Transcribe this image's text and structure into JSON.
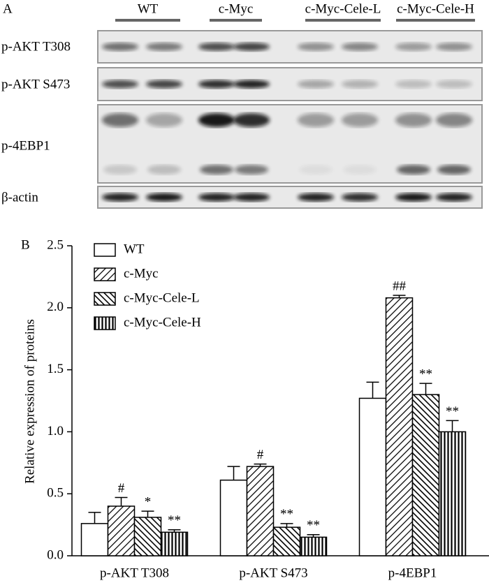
{
  "blot": {
    "panel_label": "A",
    "groups": [
      "WT",
      "c-Myc",
      "c-Myc-Cele-L",
      "c-Myc-Cele-H"
    ],
    "rows": [
      "p-AKT T308",
      "p-AKT S473",
      "p-4EBP1",
      "β-actin"
    ]
  },
  "chart_data": {
    "type": "bar",
    "panel_label": "B",
    "y_label": "Relative expression of proteins",
    "categories": [
      "p-AKT T308",
      "p-AKT S473",
      "p-4EBP1"
    ],
    "series": [
      {
        "name": "WT",
        "color": "#000000",
        "pattern": "none",
        "values": [
          0.26,
          0.61,
          1.27
        ],
        "errors": [
          0.09,
          0.11,
          0.13
        ],
        "annotations": [
          null,
          null,
          null
        ]
      },
      {
        "name": "c-Myc",
        "color": "#000000",
        "pattern": "diagonal",
        "values": [
          0.4,
          0.72,
          2.08
        ],
        "errors": [
          0.07,
          0.02,
          0.02
        ],
        "annotations": [
          "#",
          "#",
          "##"
        ]
      },
      {
        "name": "c-Myc-Cele-L",
        "color": "#000000",
        "pattern": "back-diagonal",
        "values": [
          0.31,
          0.23,
          1.3
        ],
        "errors": [
          0.05,
          0.03,
          0.09
        ],
        "annotations": [
          "*",
          "**",
          "**"
        ]
      },
      {
        "name": "c-Myc-Cele-H",
        "color": "#000000",
        "pattern": "vertical",
        "values": [
          0.19,
          0.15,
          1.0
        ],
        "errors": [
          0.02,
          0.02,
          0.09
        ],
        "annotations": [
          "**",
          "**",
          "**"
        ]
      }
    ],
    "ylim": [
      0,
      2.5
    ],
    "yticks": [
      {
        "value": 0,
        "label": "0.0"
      },
      0.5,
      {
        "value": 1,
        "label": "1.0"
      },
      1.5,
      {
        "value": 2,
        "label": "2.0"
      },
      2.5
    ],
    "legend": "upper left",
    "grid": false
  }
}
